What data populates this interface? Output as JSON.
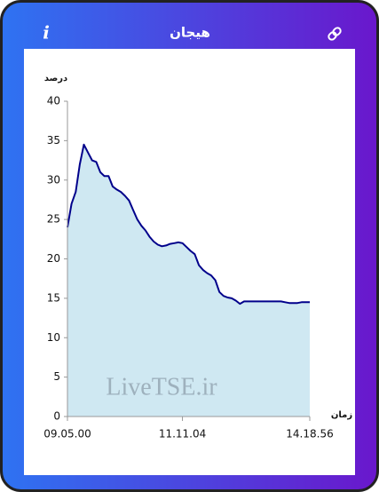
{
  "header": {
    "title": "هیجان",
    "info_icon": "i"
  },
  "chart_data": {
    "type": "area",
    "y_label": "درصد",
    "x_label": "زمان",
    "watermark": "LiveTSE.ir",
    "categories": [
      "09.05.00",
      null,
      null,
      null,
      null,
      null,
      null,
      null,
      null,
      null,
      null,
      null,
      null,
      null,
      null,
      null,
      null,
      null,
      null,
      null,
      null,
      null,
      null,
      null,
      null,
      null,
      null,
      null,
      "11.11.04",
      null,
      null,
      null,
      null,
      null,
      null,
      null,
      null,
      null,
      null,
      null,
      null,
      null,
      null,
      null,
      null,
      null,
      null,
      null,
      null,
      null,
      null,
      null,
      null,
      null,
      null,
      null,
      null,
      null,
      null,
      "14.18.56"
    ],
    "values": [
      24,
      27,
      28.5,
      32,
      34.5,
      33.5,
      32.5,
      32.3,
      31,
      30.5,
      30.5,
      29.2,
      28.8,
      28.5,
      28,
      27.4,
      26.2,
      25,
      24.2,
      23.6,
      22.8,
      22.2,
      21.8,
      21.6,
      21.7,
      21.9,
      22,
      22.1,
      22,
      21.5,
      21,
      20.6,
      19.2,
      18.6,
      18.2,
      17.9,
      17.3,
      15.8,
      15.3,
      15.1,
      15,
      14.7,
      14.3,
      14.6,
      14.6,
      14.6,
      14.6,
      14.6,
      14.6,
      14.6,
      14.6,
      14.6,
      14.6,
      14.5,
      14.4,
      14.4,
      14.4,
      14.5,
      14.5,
      14.5
    ],
    "color": "#00008b",
    "fill": "#cfe8f2",
    "ylim": [
      0,
      40
    ],
    "yticks": [
      0,
      5,
      10,
      15,
      20,
      25,
      30,
      35,
      40
    ]
  }
}
